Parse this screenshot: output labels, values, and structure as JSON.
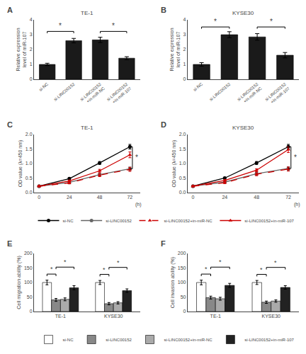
{
  "chart_data": [
    {
      "type": "bar",
      "title": "TE-1",
      "ylabel": "Relative expression\nlevel of miR-107",
      "categories": [
        "si-NC",
        "si-LINC00152",
        "si-LINC00152\n+in-miR-NC",
        "si-LINC00152\n+in-miR-107"
      ],
      "values": [
        1.0,
        2.6,
        2.65,
        1.42
      ],
      "errors": [
        0.08,
        0.15,
        0.18,
        0.1
      ],
      "color": "#1a1a1a",
      "ylim": [
        0,
        4
      ],
      "yticks": [
        0,
        1,
        2,
        3,
        4
      ],
      "grid": false,
      "annotations": [
        {
          "text": "A"
        },
        {
          "text": "*",
          "x": [
            0,
            1
          ],
          "y": 3.1
        },
        {
          "text": "*",
          "x": [
            2,
            3
          ],
          "y": 3.1
        }
      ]
    },
    {
      "type": "bar",
      "title": "KYSE30",
      "ylabel": "Relative expression\nlevel of miR-107",
      "categories": [
        "si-NC",
        "si-LINC00152",
        "si-LINC00152\n+in-miR-NC",
        "si-LINC00152\n+in-miR-107"
      ],
      "values": [
        1.0,
        3.0,
        2.85,
        1.62
      ],
      "errors": [
        0.12,
        0.2,
        0.22,
        0.18
      ],
      "color": "#1a1a1a",
      "ylim": [
        0,
        4
      ],
      "yticks": [
        0,
        1,
        2,
        3,
        4
      ],
      "grid": false,
      "annotations": [
        {
          "text": "B"
        },
        {
          "text": "*",
          "x": [
            0,
            1
          ],
          "y": 3.4
        },
        {
          "text": "*",
          "x": [
            2,
            3
          ],
          "y": 3.4
        }
      ]
    },
    {
      "type": "line",
      "title": "TE-1",
      "ylabel": "OD value (λ=450 nm)",
      "x": [
        0,
        24,
        48,
        72
      ],
      "xlim": [
        -4,
        80
      ],
      "xticks": [
        0,
        24,
        48,
        72
      ],
      "series": [
        {
          "name": "si-NC",
          "color": "#000000",
          "marker": "circle",
          "line_style": "solid",
          "values": [
            0.22,
            0.48,
            1.02,
            1.58
          ],
          "errors": [
            0.02,
            0.03,
            0.05,
            0.08
          ]
        },
        {
          "name": "si-LINC00152",
          "color": "#666666",
          "marker": "circle",
          "line_style": "solid",
          "values": [
            0.22,
            0.35,
            0.62,
            0.82
          ],
          "errors": [
            0.02,
            0.03,
            0.04,
            0.06
          ]
        },
        {
          "name": "si-LINC00152+in-miR-NC",
          "color": "#cc0000",
          "marker": "triangle",
          "line_style": "dashed",
          "values": [
            0.22,
            0.33,
            0.6,
            0.8
          ],
          "errors": [
            0.02,
            0.03,
            0.05,
            0.07
          ]
        },
        {
          "name": "si-LINC00152+in-miR-107",
          "color": "#cc0000",
          "marker": "triangle",
          "line_style": "solid",
          "values": [
            0.22,
            0.4,
            0.75,
            1.3
          ],
          "errors": [
            0.02,
            0.03,
            0.05,
            0.1
          ]
        }
      ],
      "ylim": [
        0,
        2.0
      ],
      "yticks": [
        {
          "value": 0,
          "label": "0.0"
        },
        0.5,
        {
          "value": 1,
          "label": "1.0"
        },
        1.5,
        {
          "value": 2,
          "label": "2.0"
        }
      ],
      "grid": false,
      "legend": "bottom",
      "annotations": [
        {
          "text": "C"
        },
        {
          "text": "(h)",
          "x": 72,
          "y": -0.26
        },
        {
          "text": "*",
          "x": 74,
          "y": [
            0.82,
            1.58
          ]
        }
      ]
    },
    {
      "type": "line",
      "title": "KYSE30",
      "ylabel": "OD value (λ=450 nm)",
      "x": [
        0,
        24,
        48,
        72
      ],
      "xlim": [
        -4,
        80
      ],
      "xticks": [
        0,
        24,
        48,
        72
      ],
      "series": [
        {
          "name": "si-NC",
          "color": "#000000",
          "marker": "circle",
          "line_style": "solid",
          "values": [
            0.22,
            0.5,
            1.02,
            1.58
          ],
          "errors": [
            0.02,
            0.03,
            0.05,
            0.08
          ]
        },
        {
          "name": "si-LINC00152",
          "color": "#666666",
          "marker": "circle",
          "line_style": "solid",
          "values": [
            0.22,
            0.36,
            0.65,
            0.83
          ],
          "errors": [
            0.02,
            0.03,
            0.04,
            0.06
          ]
        },
        {
          "name": "si-LINC00152+in-miR-NC",
          "color": "#cc0000",
          "marker": "triangle",
          "line_style": "dashed",
          "values": [
            0.22,
            0.34,
            0.63,
            0.81
          ],
          "errors": [
            0.02,
            0.03,
            0.05,
            0.07
          ]
        },
        {
          "name": "si-LINC00152+in-miR-107",
          "color": "#cc0000",
          "marker": "triangle",
          "line_style": "solid",
          "values": [
            0.22,
            0.42,
            0.77,
            1.48
          ],
          "errors": [
            0.02,
            0.03,
            0.05,
            0.1
          ]
        }
      ],
      "ylim": [
        0,
        2.0
      ],
      "yticks": [
        {
          "value": 0,
          "label": "0.0"
        },
        0.5,
        {
          "value": 1,
          "label": "1.0"
        },
        1.5,
        {
          "value": 2,
          "label": "2.0"
        }
      ],
      "grid": false,
      "legend": "bottom",
      "annotations": [
        {
          "text": "D"
        },
        {
          "text": "(h)",
          "x": 72,
          "y": -0.26
        },
        {
          "text": "*",
          "x": 74,
          "y": [
            0.83,
            1.58
          ]
        }
      ]
    },
    {
      "type": "bar",
      "ylabel": "Cell migration ability (%)",
      "categories": [
        "TE-1",
        "KYSE30"
      ],
      "series": [
        {
          "name": "si-NC",
          "color": "#ffffff",
          "values": [
            100,
            100
          ],
          "errors": [
            8,
            7
          ]
        },
        {
          "name": "si-LINC00152",
          "color": "#888888",
          "values": [
            40,
            27
          ],
          "errors": [
            5,
            4
          ]
        },
        {
          "name": "si-LINC00152+in-miR-NC",
          "color": "#aaaaaa",
          "values": [
            42,
            30
          ],
          "errors": [
            5,
            4
          ]
        },
        {
          "name": "si-LINC00152+in-miR-107",
          "color": "#222222",
          "values": [
            82,
            72
          ],
          "errors": [
            7,
            6
          ]
        }
      ],
      "ylim": [
        0,
        200
      ],
      "yticks": [
        0,
        50,
        100,
        150,
        200
      ],
      "grid": false,
      "legend": "bottom",
      "annotations": [
        {
          "text": "E"
        },
        {
          "text": "*",
          "x": 0,
          "between": [
            "si-NC",
            "si-LINC00152"
          ],
          "y": 122
        },
        {
          "text": "*",
          "x": 0,
          "between": [
            "si-LINC00152",
            "si-LINC00152+in-miR-107"
          ],
          "y": 146
        },
        {
          "text": "*",
          "x": 1,
          "between": [
            "si-NC",
            "si-LINC00152"
          ],
          "y": 121
        },
        {
          "text": "*",
          "x": 1,
          "between": [
            "si-LINC00152",
            "si-LINC00152+in-miR-107"
          ],
          "y": 145
        }
      ]
    },
    {
      "type": "bar",
      "ylabel": "Cell invasion ability (%)",
      "categories": [
        "TE-1",
        "KYSE30"
      ],
      "series": [
        {
          "name": "si-NC",
          "color": "#ffffff",
          "values": [
            100,
            100
          ],
          "errors": [
            8,
            7
          ]
        },
        {
          "name": "si-LINC00152",
          "color": "#888888",
          "values": [
            48,
            32
          ],
          "errors": [
            5,
            4
          ]
        },
        {
          "name": "si-LINC00152+in-miR-NC",
          "color": "#aaaaaa",
          "values": [
            44,
            36
          ],
          "errors": [
            5,
            4
          ]
        },
        {
          "name": "si-LINC00152+in-miR-107",
          "color": "#222222",
          "values": [
            90,
            83
          ],
          "errors": [
            7,
            6
          ]
        }
      ],
      "ylim": [
        0,
        200
      ],
      "yticks": [
        0,
        50,
        100,
        150,
        200
      ],
      "grid": false,
      "legend": "bottom",
      "annotations": [
        {
          "text": "F"
        },
        {
          "text": "*",
          "x": 0,
          "between": [
            "si-NC",
            "si-LINC00152"
          ],
          "y": 122
        },
        {
          "text": "*",
          "x": 0,
          "between": [
            "si-LINC00152",
            "si-LINC00152+in-miR-107"
          ],
          "y": 146
        },
        {
          "text": "*",
          "x": 1,
          "between": [
            "si-NC",
            "si-LINC00152"
          ],
          "y": 121
        },
        {
          "text": "*",
          "x": 1,
          "between": [
            "si-LINC00152",
            "si-LINC00152+in-miR-107"
          ],
          "y": 145
        }
      ]
    }
  ]
}
